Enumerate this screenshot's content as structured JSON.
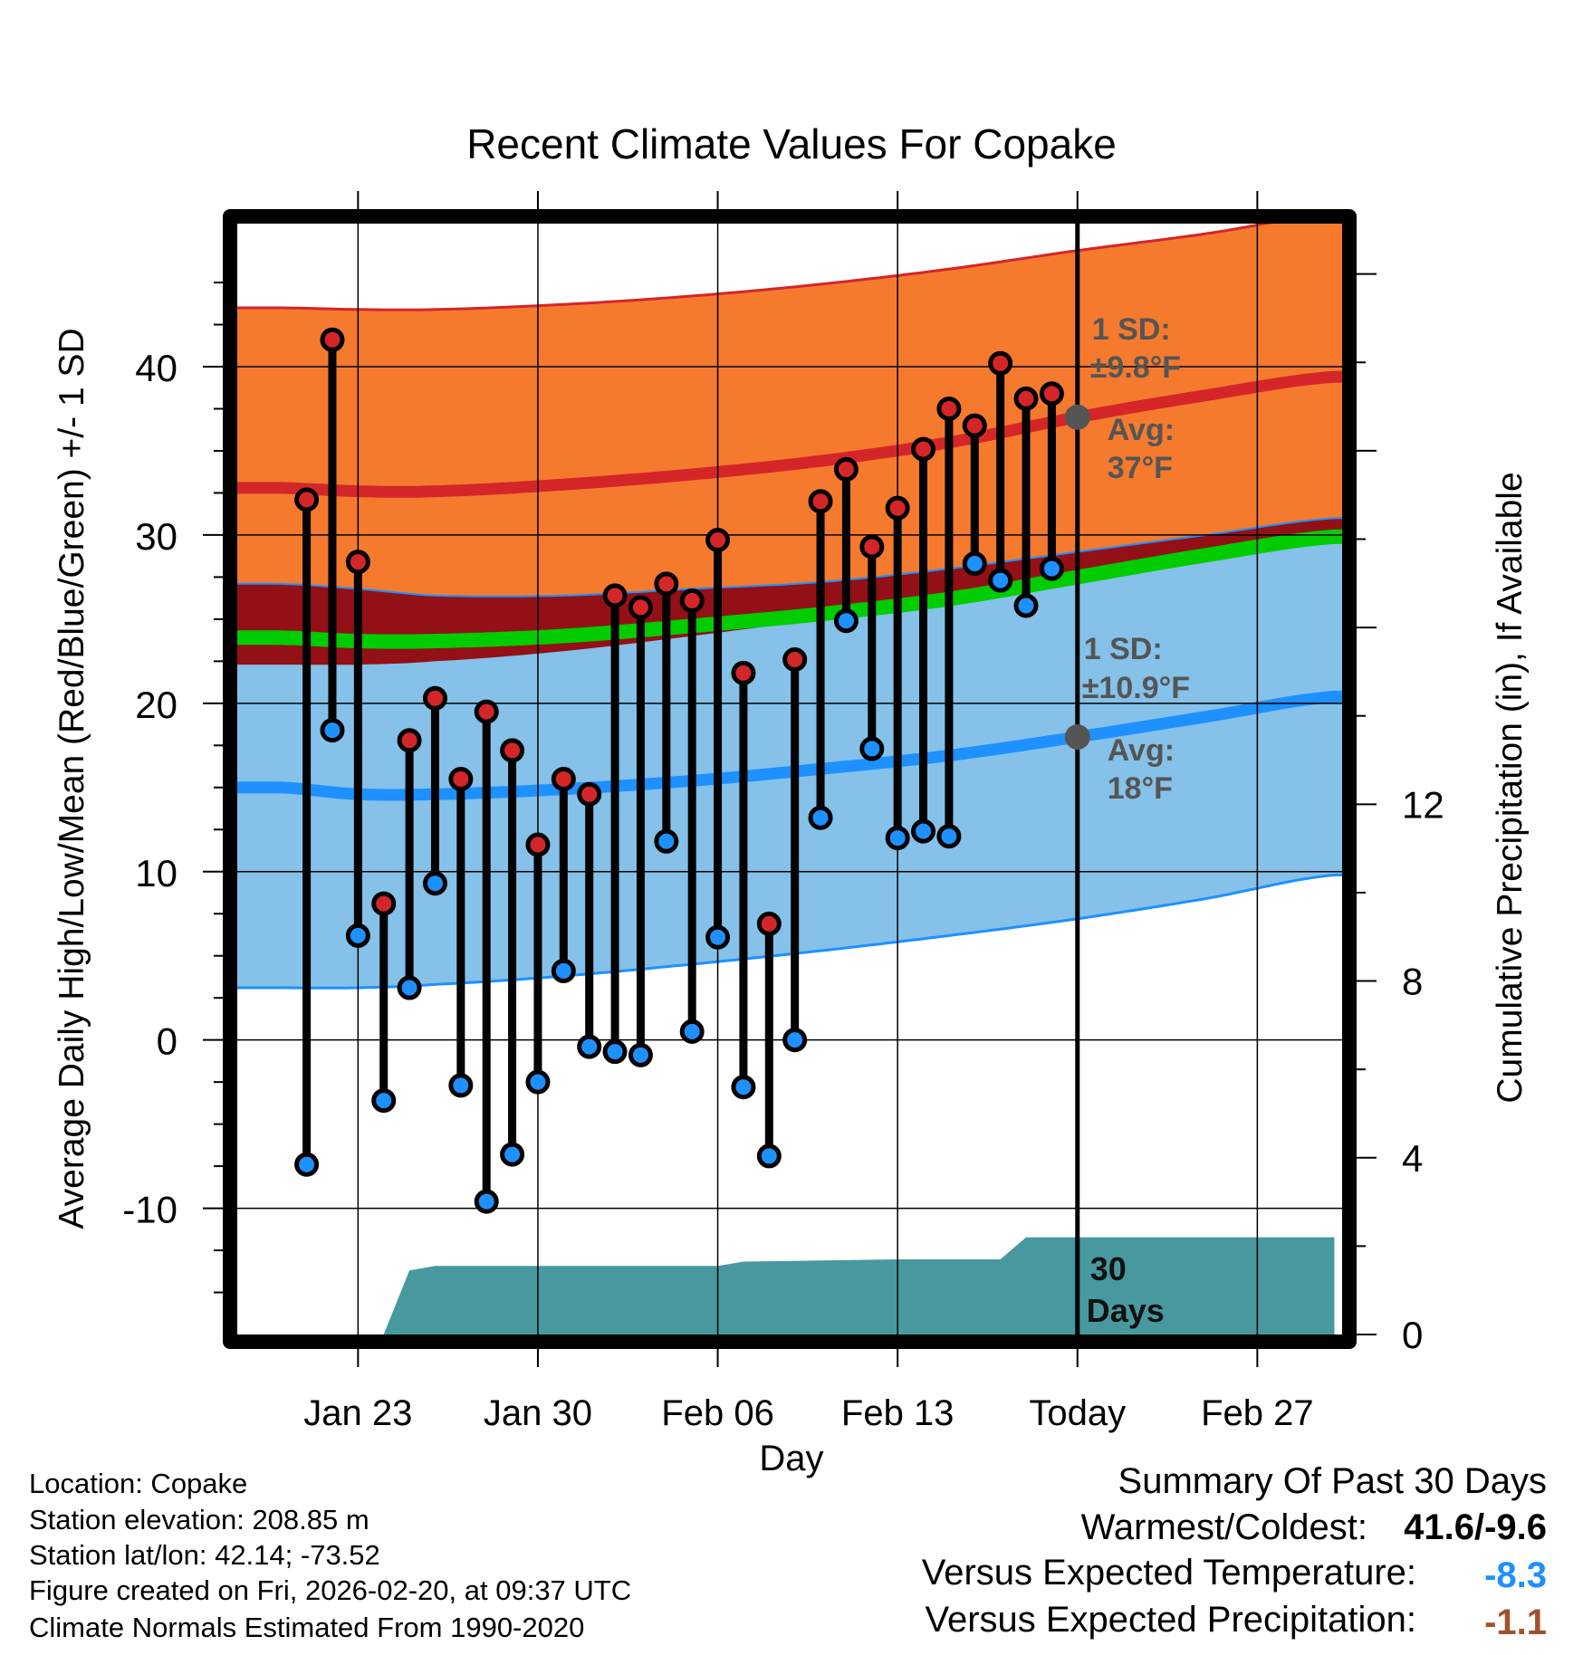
{
  "chart_data": {
    "type": "line",
    "title": "Recent Climate Values For Copake",
    "xlabel": "Day",
    "ylabel": "Average Daily High/Low/Mean (Red/Blue/Green) +/- 1 SD",
    "y2label": "Cumulative Precipitation (in), If Available",
    "x_tick_labels": [
      "Jan 23",
      "Jan 30",
      "Feb 06",
      "Feb 13",
      "Today",
      "Feb 27"
    ],
    "x_tick_days": [
      2,
      9,
      16,
      23,
      30,
      37
    ],
    "y_ticks": [
      40,
      30,
      20,
      10,
      0,
      -10
    ],
    "y_tick_labels": [
      "40",
      "30",
      "20",
      "10",
      "0",
      "-10"
    ],
    "ylim": [
      -17.5,
      48.5
    ],
    "y2_ticks": [
      12,
      8,
      4,
      0
    ],
    "y2_tick_labels": [
      "12",
      "8",
      "4",
      "0"
    ],
    "y2lim": [
      0,
      25.14
    ],
    "xlim": [
      -2.7,
      40.3
    ],
    "today_day": 30,
    "observed": [
      {
        "day": 0,
        "high": 32.1,
        "low": -7.4
      },
      {
        "day": 1,
        "high": 41.6,
        "low": 18.4
      },
      {
        "day": 2,
        "high": 28.4,
        "low": 6.2
      },
      {
        "day": 3,
        "high": 8.1,
        "low": -3.6
      },
      {
        "day": 4,
        "high": 17.8,
        "low": 3.1
      },
      {
        "day": 5,
        "high": 20.3,
        "low": 9.3
      },
      {
        "day": 6,
        "high": 15.5,
        "low": -2.7
      },
      {
        "day": 7,
        "high": 19.5,
        "low": -9.6
      },
      {
        "day": 8,
        "high": 17.2,
        "low": -6.8
      },
      {
        "day": 9,
        "high": 11.6,
        "low": -2.5
      },
      {
        "day": 10,
        "high": 15.5,
        "low": 4.1
      },
      {
        "day": 11,
        "high": 14.6,
        "low": -0.4
      },
      {
        "day": 12,
        "high": 26.4,
        "low": -0.7
      },
      {
        "day": 13,
        "high": 25.7,
        "low": -0.9
      },
      {
        "day": 14,
        "high": 27.1,
        "low": 11.8
      },
      {
        "day": 15,
        "high": 26.1,
        "low": 0.5
      },
      {
        "day": 16,
        "high": 29.7,
        "low": 6.1
      },
      {
        "day": 17,
        "high": 21.8,
        "low": -2.8
      },
      {
        "day": 18,
        "high": 6.9,
        "low": -6.9
      },
      {
        "day": 19,
        "high": 22.6,
        "low": 0.0
      },
      {
        "day": 20,
        "high": 32.0,
        "low": 13.2
      },
      {
        "day": 21,
        "high": 33.9,
        "low": 24.9
      },
      {
        "day": 22,
        "high": 29.3,
        "low": 17.3
      },
      {
        "day": 23,
        "high": 31.6,
        "low": 12.0
      },
      {
        "day": 24,
        "high": 35.1,
        "low": 12.4
      },
      {
        "day": 25,
        "high": 37.5,
        "low": 12.1
      },
      {
        "day": 26,
        "high": 36.5,
        "low": 28.3
      },
      {
        "day": 27,
        "high": 40.2,
        "low": 27.3
      },
      {
        "day": 28,
        "high": 38.1,
        "low": 25.8
      },
      {
        "day": 29,
        "high": 38.4,
        "low": 28.0
      }
    ],
    "normals": {
      "days": [
        -1,
        2,
        5,
        10,
        15,
        20,
        25,
        30,
        35,
        40
      ],
      "high_avg": [
        32.8,
        32.6,
        32.6,
        33.0,
        33.6,
        34.4,
        35.5,
        37.0,
        38.3,
        39.4
      ],
      "high_sd": 9.8,
      "low_avg": [
        15.0,
        14.6,
        14.6,
        14.9,
        15.4,
        16.1,
        16.9,
        18.0,
        19.2,
        20.4
      ],
      "low_sd": 10.9,
      "mean_avg": [
        23.9,
        23.7,
        23.7,
        24.0,
        24.6,
        25.3,
        26.2,
        27.5,
        28.8,
        29.9
      ],
      "high_sd_band_low": [
        22.3,
        22.3,
        22.5,
        23.1,
        24.0,
        25.0,
        26.0,
        27.1,
        28.5,
        29.9
      ],
      "low_sd_band_high": [
        27.1,
        26.8,
        26.4,
        26.4,
        26.8,
        27.2,
        28.0,
        29.0,
        30.0,
        31.0
      ],
      "high_sd_band_high": [
        43.5,
        43.4,
        43.4,
        43.7,
        44.2,
        44.9,
        45.8,
        46.9,
        47.9,
        49.1
      ],
      "low_sd_band_low": [
        3.1,
        3.1,
        3.3,
        3.8,
        4.5,
        5.3,
        6.2,
        7.2,
        8.4,
        9.8
      ]
    },
    "precip_cumulative": {
      "days": [
        0,
        3,
        4,
        5,
        16,
        17,
        23,
        27,
        28,
        40
      ],
      "values": [
        0,
        0,
        1.45,
        1.55,
        1.55,
        1.65,
        1.7,
        1.7,
        2.2,
        2.2
      ]
    },
    "annotations": {
      "high_sd_line1": "1 SD:",
      "high_sd_line2": "±9.8°F",
      "high_avg_line1": "Avg:",
      "high_avg_line2": "37°F",
      "low_sd_line1": "1 SD:",
      "low_sd_line2": "±10.9°F",
      "low_avg_line1": "Avg:",
      "low_avg_line2": "18°F",
      "period_line1": "30",
      "period_line2": "Days"
    },
    "colors": {
      "high_band": "#f57a2e",
      "low_band": "#85c1e8",
      "overlap": "#931016",
      "high_line": "#d42628",
      "low_line": "#1e90ff",
      "mean_line": "#00cc00",
      "precip": "#47999f",
      "high_dot": "#d42628",
      "low_dot": "#1e90ff",
      "annot": "#555555"
    }
  },
  "footer": {
    "location": "Location: Copake",
    "elevation": "Station elevation: 208.85 m",
    "latlon": "Station lat/lon: 42.14; -73.52",
    "created": "Figure created on Fri, 2026-02-20, at 09:37 UTC",
    "normals_period": "Climate Normals Estimated From 1990-2020"
  },
  "summary": {
    "title": "Summary Of Past 30 Days",
    "warm_cold_label": "Warmest/Coldest:",
    "warm_cold_value": "41.6/-9.6",
    "temp_label": "Versus Expected Temperature:",
    "temp_value": "-8.3",
    "temp_color": "#1e90ff",
    "precip_label": "Versus Expected Precipitation:",
    "precip_value": "-1.1",
    "precip_color": "#a0522d"
  }
}
